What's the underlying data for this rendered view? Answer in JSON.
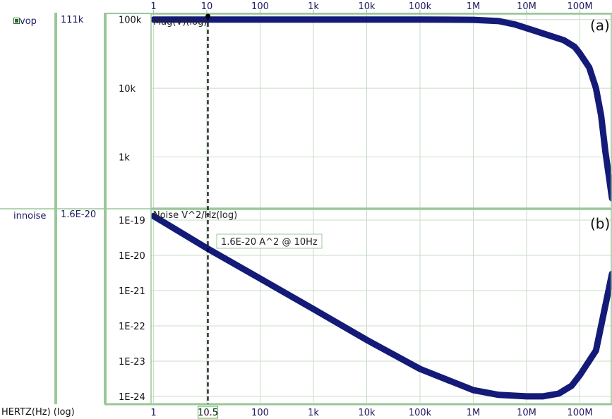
{
  "colors": {
    "trace": "#141a78",
    "grid": "#c8dcc8",
    "border": "#9ac79a",
    "cursor": "#000000"
  },
  "signals": [
    {
      "name": "vop",
      "value": "111k",
      "icon": "checkbox-icon"
    },
    {
      "name": "innoise",
      "value": "1.6E-20"
    }
  ],
  "x_axis_label": "HERTZ(Hz) (log)",
  "cursor": {
    "x": 10.5,
    "label": "10.5"
  },
  "annotation": "1.6E-20 A^2 @ 10Hz",
  "chart_data": [
    {
      "type": "line",
      "panel": "(a)",
      "title": "Mag(V)(log)",
      "xscale": "log",
      "yscale": "log",
      "xlim": [
        0.9,
        400000000
      ],
      "ylim": [
        180,
        120000
      ],
      "x_ticks": [
        {
          "label": "1",
          "value": 1
        },
        {
          "label": "10",
          "value": 10
        },
        {
          "label": "100",
          "value": 100
        },
        {
          "label": "1k",
          "value": 1000
        },
        {
          "label": "10k",
          "value": 10000
        },
        {
          "label": "100k",
          "value": 100000
        },
        {
          "label": "1M",
          "value": 1000000
        },
        {
          "label": "10M",
          "value": 10000000
        },
        {
          "label": "100M",
          "value": 100000000
        }
      ],
      "y_ticks": [
        {
          "label": "100k",
          "value": 100000
        },
        {
          "label": "10k",
          "value": 10000
        },
        {
          "label": "1k",
          "value": 1000
        }
      ],
      "series": [
        {
          "x": [
            1,
            10,
            100,
            1000,
            10000,
            100000,
            1000000,
            3000000,
            6000000,
            10000000,
            20000000,
            50000000,
            80000000,
            100000000,
            150000000,
            200000000,
            250000000,
            300000000,
            400000000
          ],
          "y": [
            100000,
            100000,
            100000,
            100000,
            100000,
            100000,
            99000,
            95000,
            85000,
            75000,
            63000,
            50000,
            40000,
            32000,
            20000,
            10000,
            4000,
            1200,
            250
          ]
        }
      ]
    },
    {
      "type": "line",
      "panel": "(b)",
      "title": "Noise V^2/Hz(log)",
      "xscale": "log",
      "yscale": "log",
      "xlim": [
        0.9,
        400000000
      ],
      "ylim": [
        6e-25,
        2e-19
      ],
      "x_ticks": [
        {
          "label": "1",
          "value": 1
        },
        {
          "label": "10",
          "value": 10
        },
        {
          "label": "100",
          "value": 100
        },
        {
          "label": "1k",
          "value": 1000
        },
        {
          "label": "10k",
          "value": 10000
        },
        {
          "label": "100k",
          "value": 100000
        },
        {
          "label": "1M",
          "value": 1000000
        },
        {
          "label": "10M",
          "value": 10000000
        },
        {
          "label": "100M",
          "value": 100000000
        }
      ],
      "y_ticks": [
        {
          "label": "1E-19",
          "value": 1e-19
        },
        {
          "label": "1E-20",
          "value": 1e-20
        },
        {
          "label": "1E-21",
          "value": 1e-21
        },
        {
          "label": "1E-22",
          "value": 1e-22
        },
        {
          "label": "1E-23",
          "value": 1e-23
        },
        {
          "label": "1E-24",
          "value": 1e-24
        }
      ],
      "series": [
        {
          "x": [
            1,
            10,
            100,
            1000,
            10000,
            100000,
            1000000,
            3000000,
            10000000,
            20000000,
            40000000,
            70000000,
            100000000,
            200000000,
            400000000
          ],
          "y": [
            1.3e-19,
            1.6e-20,
            2.2e-21,
            3e-22,
            4e-23,
            6e-24,
            1.5e-24,
            1.1e-24,
            1e-24,
            1e-24,
            1.2e-24,
            2e-24,
            4e-24,
            2e-23,
            3e-21
          ]
        }
      ]
    }
  ]
}
